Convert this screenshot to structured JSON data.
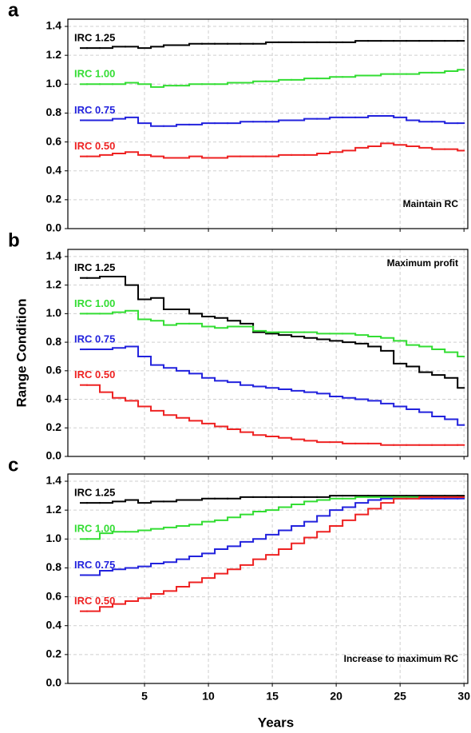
{
  "chart_data": [
    {
      "type": "line",
      "step": true,
      "panel_label": "a",
      "annotation": "Maintain RC",
      "annotation_corner": "lower right",
      "x": [
        0,
        1,
        2,
        3,
        4,
        5,
        6,
        7,
        8,
        9,
        10,
        11,
        12,
        13,
        14,
        15,
        16,
        17,
        18,
        19,
        20,
        21,
        22,
        23,
        24,
        25,
        26,
        27,
        28,
        29,
        30
      ],
      "xlim": [
        -1,
        30.3
      ],
      "xticks": [
        5,
        10,
        15,
        20,
        25,
        30
      ],
      "show_xtick_labels": false,
      "ylim": [
        0,
        1.45
      ],
      "yticks": [
        {
          "value": 0,
          "label": "0.0"
        },
        {
          "value": 0.2,
          "label": "0.2"
        },
        {
          "value": 0.4,
          "label": "0.4"
        },
        {
          "value": 0.6,
          "label": "0.6"
        },
        {
          "value": 0.8,
          "label": "0.8"
        },
        {
          "value": 1,
          "label": "1.0"
        },
        {
          "value": 1.2,
          "label": "1.2"
        },
        {
          "value": 1.4,
          "label": "1.4"
        }
      ],
      "grid": true,
      "series": [
        {
          "name": "IRC 1.25",
          "color": "#000000",
          "values": [
            1.25,
            1.25,
            1.25,
            1.26,
            1.26,
            1.25,
            1.26,
            1.27,
            1.27,
            1.28,
            1.28,
            1.28,
            1.28,
            1.28,
            1.28,
            1.29,
            1.29,
            1.29,
            1.29,
            1.29,
            1.29,
            1.29,
            1.3,
            1.3,
            1.3,
            1.3,
            1.3,
            1.3,
            1.3,
            1.3,
            1.3
          ]
        },
        {
          "name": "IRC 1.00",
          "color": "#33dd33",
          "values": [
            1.0,
            1.0,
            1.0,
            1.0,
            1.01,
            1.0,
            0.98,
            0.99,
            0.99,
            1.0,
            1.0,
            1.0,
            1.01,
            1.01,
            1.02,
            1.02,
            1.03,
            1.03,
            1.04,
            1.04,
            1.05,
            1.05,
            1.06,
            1.06,
            1.07,
            1.07,
            1.07,
            1.08,
            1.08,
            1.09,
            1.1
          ]
        },
        {
          "name": "IRC 0.75",
          "color": "#2222dd",
          "values": [
            0.75,
            0.75,
            0.75,
            0.76,
            0.77,
            0.73,
            0.71,
            0.71,
            0.72,
            0.72,
            0.73,
            0.73,
            0.73,
            0.74,
            0.74,
            0.74,
            0.75,
            0.75,
            0.76,
            0.76,
            0.77,
            0.77,
            0.77,
            0.78,
            0.78,
            0.77,
            0.75,
            0.74,
            0.74,
            0.73,
            0.73
          ]
        },
        {
          "name": "IRC 0.50",
          "color": "#ee2222",
          "values": [
            0.5,
            0.5,
            0.51,
            0.52,
            0.53,
            0.51,
            0.5,
            0.49,
            0.49,
            0.5,
            0.49,
            0.49,
            0.5,
            0.5,
            0.5,
            0.5,
            0.51,
            0.51,
            0.51,
            0.52,
            0.53,
            0.54,
            0.56,
            0.57,
            0.59,
            0.58,
            0.57,
            0.56,
            0.55,
            0.55,
            0.54
          ]
        }
      ]
    },
    {
      "type": "line",
      "step": true,
      "panel_label": "b",
      "annotation": "Maximum profit",
      "annotation_corner": "upper right",
      "ylabel": "Range Condition",
      "x": [
        0,
        1,
        2,
        3,
        4,
        5,
        6,
        7,
        8,
        9,
        10,
        11,
        12,
        13,
        14,
        15,
        16,
        17,
        18,
        19,
        20,
        21,
        22,
        23,
        24,
        25,
        26,
        27,
        28,
        29,
        30
      ],
      "xlim": [
        -1,
        30.3
      ],
      "xticks": [
        5,
        10,
        15,
        20,
        25,
        30
      ],
      "show_xtick_labels": false,
      "ylim": [
        0,
        1.45
      ],
      "yticks": [
        {
          "value": 0,
          "label": "0.0"
        },
        {
          "value": 0.2,
          "label": "0.2"
        },
        {
          "value": 0.4,
          "label": "0.4"
        },
        {
          "value": 0.6,
          "label": "0.6"
        },
        {
          "value": 0.8,
          "label": "0.8"
        },
        {
          "value": 1,
          "label": "1.0"
        },
        {
          "value": 1.2,
          "label": "1.2"
        },
        {
          "value": 1.4,
          "label": "1.4"
        }
      ],
      "grid": true,
      "series": [
        {
          "name": "IRC 1.25",
          "color": "#000000",
          "values": [
            1.25,
            1.25,
            1.26,
            1.26,
            1.2,
            1.1,
            1.11,
            1.03,
            1.03,
            1.0,
            0.98,
            0.97,
            0.95,
            0.93,
            0.87,
            0.86,
            0.85,
            0.84,
            0.83,
            0.82,
            0.81,
            0.8,
            0.79,
            0.77,
            0.74,
            0.65,
            0.63,
            0.59,
            0.57,
            0.55,
            0.48
          ]
        },
        {
          "name": "IRC 1.00",
          "color": "#33dd33",
          "values": [
            1.0,
            1.0,
            1.0,
            1.01,
            1.02,
            0.96,
            0.95,
            0.92,
            0.93,
            0.93,
            0.91,
            0.9,
            0.91,
            0.91,
            0.88,
            0.87,
            0.87,
            0.87,
            0.87,
            0.86,
            0.86,
            0.86,
            0.85,
            0.84,
            0.83,
            0.81,
            0.78,
            0.77,
            0.75,
            0.73,
            0.7
          ]
        },
        {
          "name": "IRC 0.75",
          "color": "#2222dd",
          "values": [
            0.75,
            0.75,
            0.75,
            0.76,
            0.77,
            0.7,
            0.64,
            0.62,
            0.6,
            0.58,
            0.55,
            0.53,
            0.52,
            0.5,
            0.49,
            0.48,
            0.47,
            0.46,
            0.45,
            0.44,
            0.42,
            0.41,
            0.4,
            0.39,
            0.37,
            0.35,
            0.33,
            0.31,
            0.28,
            0.26,
            0.22
          ]
        },
        {
          "name": "IRC 0.50",
          "color": "#ee2222",
          "values": [
            0.5,
            0.5,
            0.45,
            0.41,
            0.39,
            0.35,
            0.32,
            0.29,
            0.27,
            0.25,
            0.23,
            0.21,
            0.19,
            0.17,
            0.15,
            0.14,
            0.13,
            0.12,
            0.11,
            0.1,
            0.1,
            0.09,
            0.09,
            0.09,
            0.08,
            0.08,
            0.08,
            0.08,
            0.08,
            0.08,
            0.08
          ]
        }
      ]
    },
    {
      "type": "line",
      "step": true,
      "panel_label": "c",
      "annotation": "Increase to maximum RC",
      "annotation_corner": "lower right",
      "xlabel": "Years",
      "x": [
        0,
        1,
        2,
        3,
        4,
        5,
        6,
        7,
        8,
        9,
        10,
        11,
        12,
        13,
        14,
        15,
        16,
        17,
        18,
        19,
        20,
        21,
        22,
        23,
        24,
        25,
        26,
        27,
        28,
        29,
        30
      ],
      "xlim": [
        -1,
        30.3
      ],
      "xticks": [
        5,
        10,
        15,
        20,
        25,
        30
      ],
      "show_xtick_labels": true,
      "ylim": [
        0,
        1.45
      ],
      "yticks": [
        {
          "value": 0,
          "label": "0.0"
        },
        {
          "value": 0.2,
          "label": "0.2"
        },
        {
          "value": 0.4,
          "label": "0.4"
        },
        {
          "value": 0.6,
          "label": "0.6"
        },
        {
          "value": 0.8,
          "label": "0.8"
        },
        {
          "value": 1,
          "label": "1.0"
        },
        {
          "value": 1.2,
          "label": "1.2"
        },
        {
          "value": 1.4,
          "label": "1.4"
        }
      ],
      "grid": true,
      "series": [
        {
          "name": "IRC 1.25",
          "color": "#000000",
          "values": [
            1.25,
            1.25,
            1.25,
            1.26,
            1.27,
            1.25,
            1.26,
            1.26,
            1.27,
            1.27,
            1.28,
            1.28,
            1.28,
            1.29,
            1.29,
            1.29,
            1.29,
            1.29,
            1.29,
            1.29,
            1.3,
            1.3,
            1.3,
            1.3,
            1.3,
            1.3,
            1.3,
            1.3,
            1.3,
            1.3,
            1.3
          ]
        },
        {
          "name": "IRC 1.00",
          "color": "#33dd33",
          "values": [
            1.0,
            1.0,
            1.04,
            1.05,
            1.05,
            1.06,
            1.07,
            1.08,
            1.09,
            1.1,
            1.12,
            1.13,
            1.15,
            1.17,
            1.19,
            1.2,
            1.22,
            1.24,
            1.26,
            1.27,
            1.28,
            1.28,
            1.29,
            1.29,
            1.29,
            1.29,
            1.29,
            1.29,
            1.29,
            1.29,
            1.29
          ]
        },
        {
          "name": "IRC 0.75",
          "color": "#2222dd",
          "values": [
            0.75,
            0.75,
            0.78,
            0.79,
            0.8,
            0.81,
            0.83,
            0.84,
            0.86,
            0.88,
            0.9,
            0.93,
            0.95,
            0.98,
            1.0,
            1.03,
            1.06,
            1.09,
            1.12,
            1.16,
            1.2,
            1.22,
            1.25,
            1.27,
            1.28,
            1.28,
            1.28,
            1.28,
            1.28,
            1.28,
            1.28
          ]
        },
        {
          "name": "IRC 0.50",
          "color": "#ee2222",
          "values": [
            0.5,
            0.5,
            0.53,
            0.55,
            0.57,
            0.59,
            0.62,
            0.64,
            0.67,
            0.7,
            0.73,
            0.76,
            0.79,
            0.82,
            0.86,
            0.89,
            0.93,
            0.97,
            1.01,
            1.05,
            1.09,
            1.13,
            1.17,
            1.21,
            1.25,
            1.28,
            1.28,
            1.29,
            1.29,
            1.29,
            1.29
          ]
        }
      ]
    }
  ]
}
